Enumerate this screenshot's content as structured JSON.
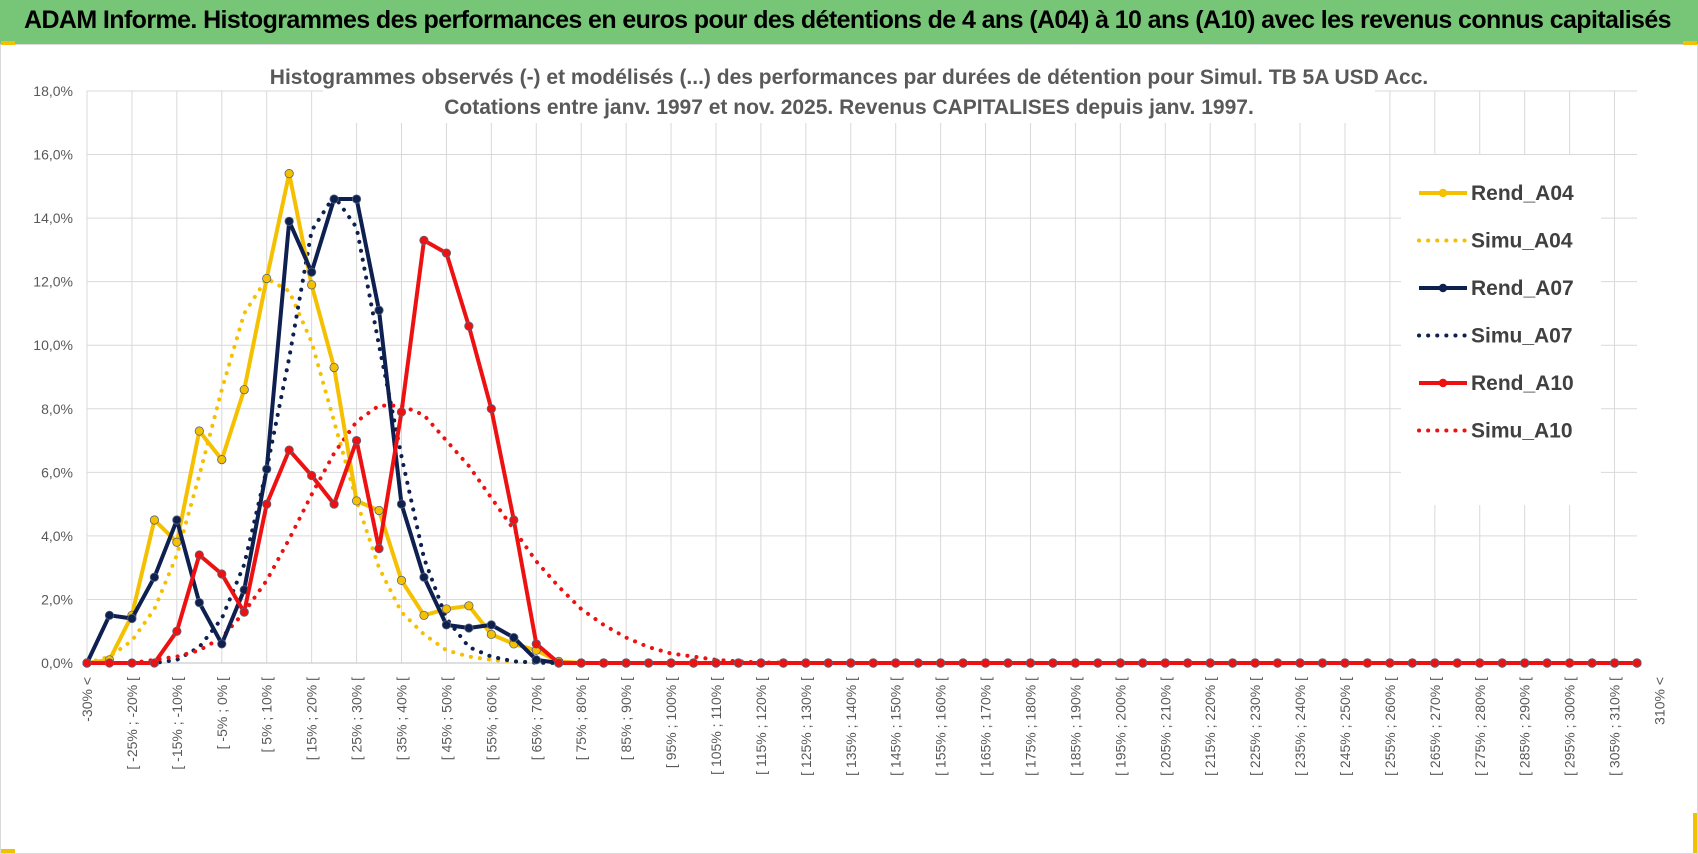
{
  "banner": {
    "title": "ADAM Informe. Histogrammes des performances en euros pour des détentions de 4 ans (A04) à 10 ans (A10) avec les revenus connus capitalisés"
  },
  "chart_data": {
    "type": "line",
    "title": "Histogrammes observés (-) et modélisés (...) des performances par durées de détention pour Simul. TB 5A USD Acc.",
    "subtitle": "Cotations entre janv. 1997 et nov. 2025. Revenus CAPITALISES depuis janv. 1997.",
    "xlabel": "",
    "ylabel": "",
    "ylim": [
      0,
      18
    ],
    "y_ticks": [
      "0,0%",
      "2,0%",
      "4,0%",
      "6,0%",
      "8,0%",
      "10,0%",
      "12,0%",
      "14,0%",
      "16,0%",
      "18,0%"
    ],
    "grid": true,
    "legend_position": "right",
    "x_tick_labels": [
      "-30% <",
      "[ -25% ; -20% [",
      "[ -15% ; -10% [",
      "[ -5% ; 0% [",
      "[ 5% ; 10% [",
      "[ 15% ; 20% [",
      "[ 25% ; 30% [",
      "[ 35% ; 40% [",
      "[ 45% ; 50% [",
      "[ 55% ; 60% [",
      "[ 65% ; 70% [",
      "[ 75% ; 80% [",
      "[ 85% ; 90% [",
      "[ 95% ; 100% [",
      "[ 105% ; 110% [",
      "[ 115% ; 120% [",
      "[ 125% ; 130% [",
      "[ 135% ; 140% [",
      "[ 145% ; 150% [",
      "[ 155% ; 160% [",
      "[ 165% ; 170% [",
      "[ 175% ; 180% [",
      "[ 185% ; 190% [",
      "[ 195% ; 200% [",
      "[ 205% ; 210% [",
      "[ 215% ; 220% [",
      "[ 225% ; 230% [",
      "[ 235% ; 240% [",
      "[ 245% ; 250% [",
      "[ 255% ; 260% [",
      "[ 265% ; 270% [",
      "[ 275% ; 280% [",
      "[ 285% ; 290% [",
      "[ 295% ; 300% [",
      "[ 305% ; 310% [",
      "310% <"
    ],
    "n_bins": 70,
    "series": [
      {
        "name": "Rend_A04",
        "style": "solid",
        "color": "#f5c000",
        "markers": true,
        "values": [
          0,
          0.1,
          1.5,
          4.5,
          3.8,
          7.3,
          6.4,
          8.6,
          12.1,
          15.4,
          11.9,
          9.3,
          5.1,
          4.8,
          2.6,
          1.5,
          1.7,
          1.8,
          0.9,
          0.6,
          0.4,
          0.05
        ]
      },
      {
        "name": "Simu_A04",
        "style": "dotted",
        "color": "#f5c000",
        "markers": false,
        "values": [
          0,
          0.2,
          0.7,
          1.7,
          3.4,
          5.9,
          8.6,
          11.0,
          12.1,
          11.7,
          10.1,
          7.6,
          5.1,
          3.0,
          1.6,
          0.9,
          0.4,
          0.2,
          0.1,
          0.04,
          0.02,
          0.01
        ]
      },
      {
        "name": "Rend_A07",
        "style": "solid",
        "color": "#0d2050",
        "markers": true,
        "values": [
          0,
          1.5,
          1.4,
          2.7,
          4.5,
          1.9,
          0.6,
          2.3,
          6.1,
          13.9,
          12.3,
          14.6,
          14.6,
          11.1,
          5.0,
          2.7,
          1.2,
          1.1,
          1.2,
          0.8,
          0.1,
          0.0
        ]
      },
      {
        "name": "Simu_A07",
        "style": "dotted",
        "color": "#0d2050",
        "markers": false,
        "values": [
          0,
          0.0,
          0.0,
          0.0,
          0.1,
          0.5,
          1.4,
          3.1,
          6.1,
          9.6,
          13.6,
          14.7,
          13.7,
          10.0,
          6.5,
          3.3,
          1.4,
          0.5,
          0.2,
          0.05,
          0.01,
          0.0
        ]
      },
      {
        "name": "Rend_A10",
        "style": "solid",
        "color": "#ee1111",
        "markers": true,
        "values": [
          0,
          0,
          0,
          0,
          1.0,
          3.4,
          2.8,
          1.6,
          5.0,
          6.7,
          5.9,
          5.0,
          7.0,
          3.6,
          7.9,
          13.3,
          12.9,
          10.6,
          8.0,
          4.5,
          0.6,
          0.0
        ]
      },
      {
        "name": "Simu_A10",
        "style": "dotted",
        "color": "#ee1111",
        "markers": false,
        "values": [
          0,
          0.0,
          0.0,
          0.1,
          0.2,
          0.4,
          0.8,
          1.6,
          2.6,
          3.9,
          5.3,
          6.6,
          7.6,
          8.1,
          8.1,
          7.8,
          7.0,
          6.2,
          5.2,
          4.2,
          3.2,
          2.4,
          1.7,
          1.2,
          0.8,
          0.5,
          0.3,
          0.2,
          0.1,
          0.05,
          0.02,
          0.01
        ]
      }
    ]
  }
}
